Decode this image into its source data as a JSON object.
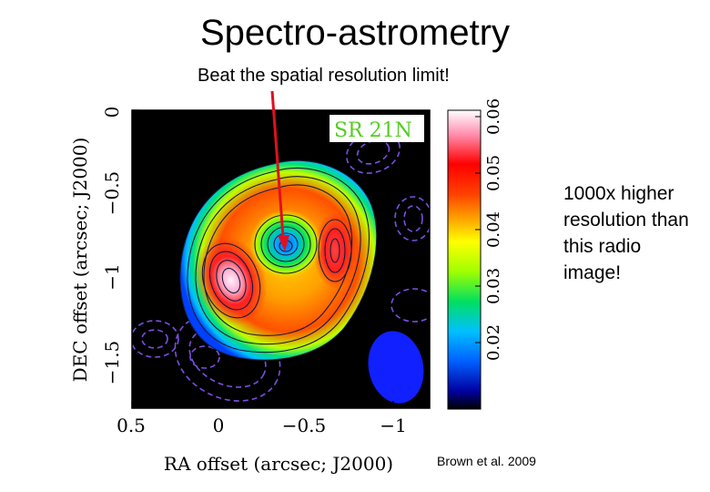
{
  "slide": {
    "title": "Spectro-astrometry",
    "subtitle": "Beat the spatial resolution limit!",
    "side_note": "1000x higher resolution than this radio image!",
    "citation": "Brown et al. 2009"
  },
  "figure": {
    "panel_label": "SR 21N",
    "xlabel": "RA offset (arcsec; J2000)",
    "ylabel": "DEC offset (arcsec; J2000)",
    "x_ticks": [
      "0.5",
      "0",
      "−0.5",
      "−1"
    ],
    "y_ticks": [
      "0",
      "−0.5",
      "−1",
      "−1.5"
    ],
    "colorbar_ticks": [
      "0.02",
      "0.03",
      "0.04",
      "0.05",
      "0.06"
    ],
    "colors": {
      "annotation_arrow": "#e01020",
      "negative_contours": "#7a4fe0",
      "beam": "#1020ff",
      "background": "#000000",
      "panel_label": "#55cc22"
    }
  }
}
